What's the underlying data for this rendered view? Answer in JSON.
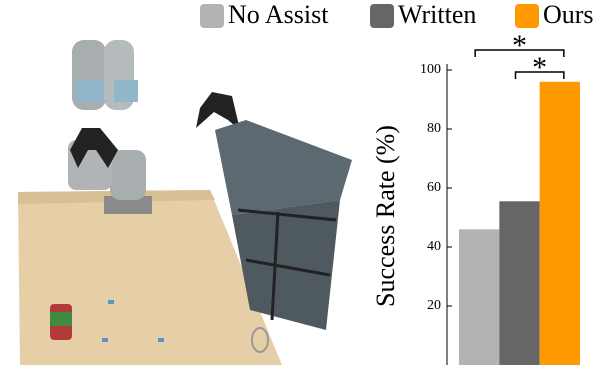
{
  "chart_data": {
    "type": "bar",
    "ylabel": "Success Rate (%)",
    "categories": [
      "No Assist",
      "Written",
      "Ours"
    ],
    "values": [
      46,
      55.5,
      96
    ],
    "colors": [
      "#b3b3b3",
      "#666666",
      "#ff9900"
    ],
    "ylim": [
      0,
      100
    ],
    "yticks": [
      20,
      40,
      60,
      80,
      100
    ],
    "annotations": [
      "*",
      "*"
    ]
  }
}
